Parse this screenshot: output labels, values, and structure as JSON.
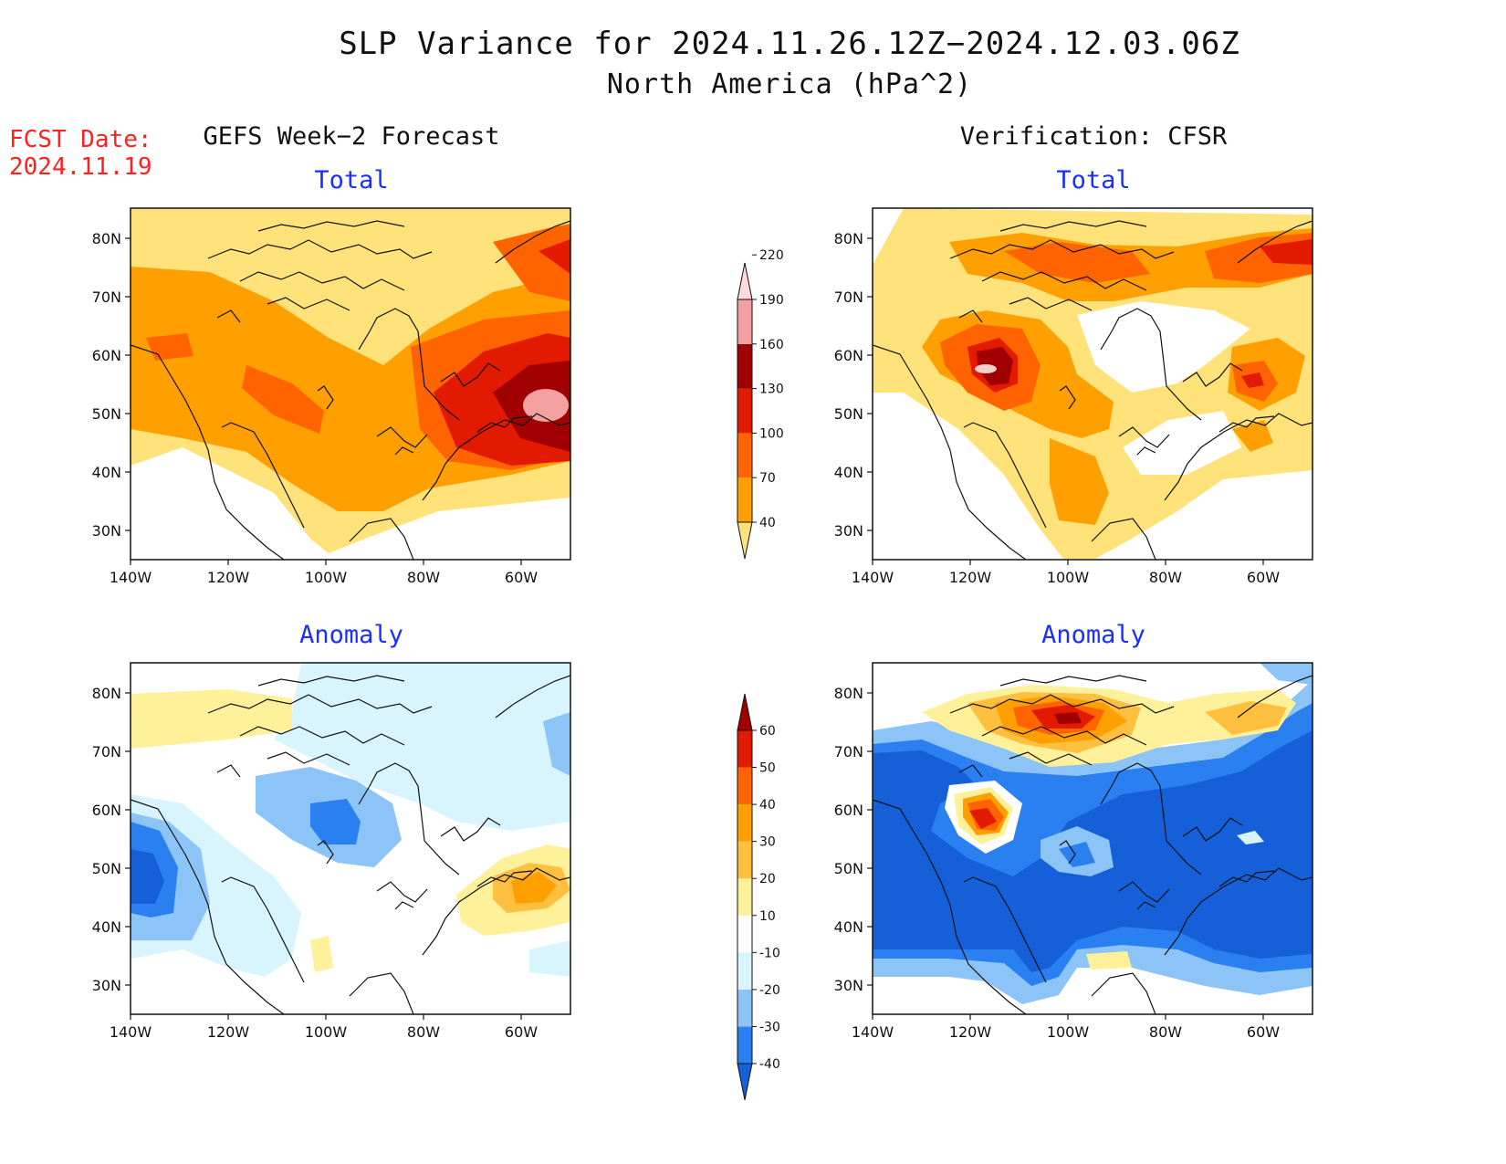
{
  "title": "SLP Variance for 2024.11.26.12Z−2024.12.03.06Z",
  "subtitle": "North America (hPa^2)",
  "fcst_date_label": "FCST Date:",
  "fcst_date_value": "2024.11.19",
  "columns": [
    {
      "heading": "GEFS Week−2 Forecast"
    },
    {
      "heading": "Verification: CFSR"
    }
  ],
  "rows": [
    {
      "label": "Total"
    },
    {
      "label": "Anomaly"
    }
  ],
  "lat_labels": [
    "80N",
    "70N",
    "60N",
    "50N",
    "40N",
    "30N"
  ],
  "lon_labels": [
    "140W",
    "120W",
    "100W",
    "80W",
    "60W"
  ],
  "colorbars": {
    "total": {
      "levels": [
        "40",
        "70",
        "100",
        "130",
        "160",
        "190",
        "220"
      ],
      "colors": [
        "#ffe37a",
        "#ffa000",
        "#ff6400",
        "#e11a00",
        "#a00000",
        "#f5a0a0",
        "#ffdcdc"
      ]
    },
    "anomaly": {
      "levels": [
        "-40",
        "-30",
        "-20",
        "-10",
        "10",
        "20",
        "30",
        "40",
        "50",
        "60"
      ],
      "colors": [
        "#1560d8",
        "#2a80f0",
        "#8cc4f8",
        "#d8f4fc",
        "#ffffff",
        "#fff09a",
        "#ffc040",
        "#ffa000",
        "#ff6400",
        "#e11a00",
        "#a00000"
      ]
    }
  }
}
